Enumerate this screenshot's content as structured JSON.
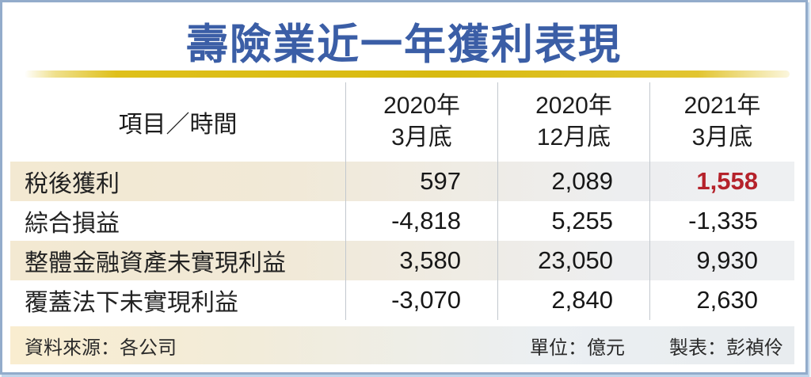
{
  "title": "壽險業近一年獲利表現",
  "colors": {
    "title_blue": "#3b5ea6",
    "gold_rule": "#d8ba10",
    "highlight_red": "#b5222b",
    "band_left_beige": "#f3e9d2",
    "band_right_gray": "#eef0f2",
    "frame_border_blue": "#93accb"
  },
  "table": {
    "header": {
      "item_time": "項目／時間",
      "periods": [
        {
          "line1": "2020年",
          "line2": "3月底"
        },
        {
          "line1": "2020年",
          "line2": "12月底"
        },
        {
          "line1": "2021年",
          "line2": "3月底"
        }
      ]
    },
    "rows": [
      {
        "label": "稅後獲利",
        "values": [
          "597",
          "2,089",
          "1,558"
        ]
      },
      {
        "label": "綜合損益",
        "values": [
          "-4,818",
          "5,255",
          "-1,335"
        ]
      },
      {
        "label": "整體金融資產未實現利益",
        "values": [
          "3,580",
          "23,050",
          "9,930"
        ]
      },
      {
        "label": "覆蓋法下未實現利益",
        "values": [
          "-3,070",
          "2,840",
          "2,630"
        ]
      }
    ]
  },
  "footer": {
    "source": "資料來源：各公司",
    "unit": "單位：億元",
    "credit": "製表：彭禎伶"
  },
  "chart_data": {
    "type": "table",
    "title": "壽險業近一年獲利表現",
    "columns": [
      "項目／時間",
      "2020年3月底",
      "2020年12月底",
      "2021年3月底"
    ],
    "rows": [
      [
        "稅後獲利",
        597,
        2089,
        1558
      ],
      [
        "綜合損益",
        -4818,
        5255,
        -1335
      ],
      [
        "整體金融資產未實現利益",
        3580,
        23050,
        9930
      ],
      [
        "覆蓋法下未實現利益",
        -3070,
        2840,
        2630
      ]
    ],
    "unit": "億元",
    "source": "各公司",
    "credit": "彭禎伶",
    "notes": "2021年3月底稅後獲利1,558以紅色粗體強調"
  }
}
